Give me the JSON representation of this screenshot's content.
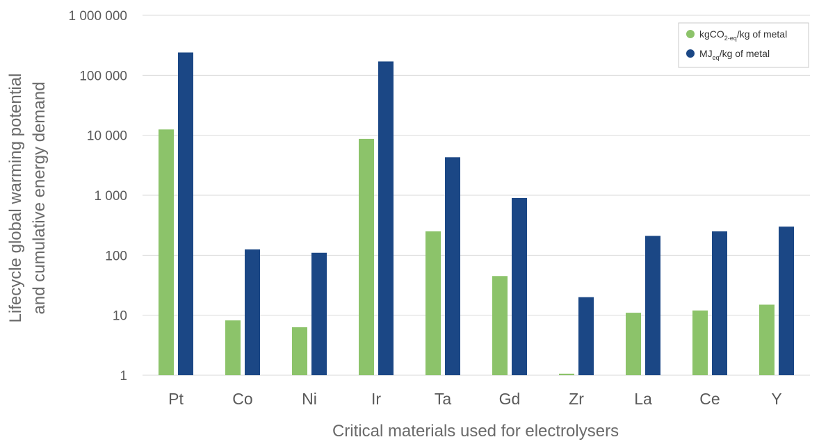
{
  "chart_data": {
    "type": "bar",
    "title": "",
    "xlabel": "Critical materials used for electrolysers",
    "ylabel_lines": [
      "Lifecycle global warming potential",
      "and cumulative energy demand"
    ],
    "scale": "log",
    "ylim": [
      1,
      1000000
    ],
    "y_ticks": [
      {
        "value": 1,
        "label": "1"
      },
      {
        "value": 10,
        "label": "10"
      },
      {
        "value": 100,
        "label": "100"
      },
      {
        "value": 1000,
        "label": "1 000"
      },
      {
        "value": 10000,
        "label": "10 000"
      },
      {
        "value": 100000,
        "label": "100 000"
      },
      {
        "value": 1000000,
        "label": "1 000 000"
      }
    ],
    "grid": true,
    "legend_position": "top-right",
    "categories": [
      "Pt",
      "Co",
      "Ni",
      "Ir",
      "Ta",
      "Gd",
      "Zr",
      "La",
      "Ce",
      "Y"
    ],
    "series": [
      {
        "name": "kgCO2-eq/kg of metal",
        "legend": {
          "pre": "kgCO",
          "sub": "2-eq",
          "post": "/kg of metal"
        },
        "color": "#8cc36a",
        "values": [
          12500,
          8.2,
          6.3,
          8700,
          250,
          45,
          1.06,
          11,
          12,
          15
        ]
      },
      {
        "name": "MJeq/kg of metal",
        "legend": {
          "pre": "MJ",
          "sub": "eq",
          "post": "/kg of metal"
        },
        "color": "#1b4785",
        "values": [
          240000,
          125,
          110,
          170000,
          4300,
          900,
          20,
          210,
          250,
          300
        ]
      }
    ]
  }
}
